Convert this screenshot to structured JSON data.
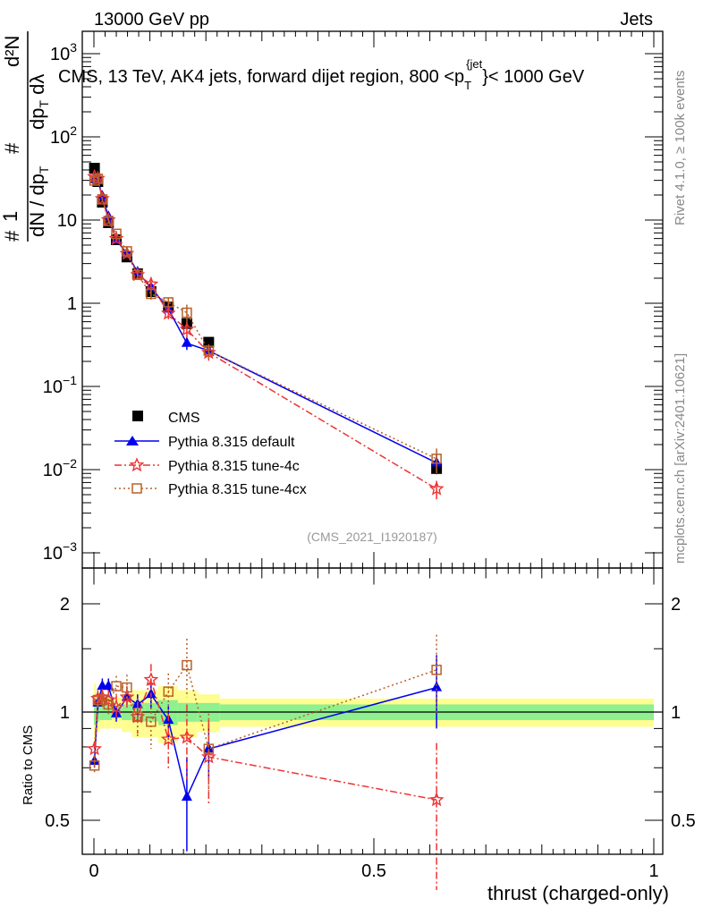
{
  "header": {
    "left": "13000 GeV pp",
    "right": "Jets"
  },
  "side": {
    "rivet": "Rivet 4.1.0, ≥ 100k events",
    "mcplots": "mcplots.cern.ch [arXiv:2401.10621]"
  },
  "analysis_tag": "(CMS_2021_I1920187)",
  "chart_data": [
    {
      "type": "scatter",
      "title_parts": {
        "pre": "CMS, 13 TeV, AK4 jets, forward dijet region, 800 <p",
        "sub": "T",
        "sup": "{jet",
        "post": "}< 1000 GeV"
      },
      "ylabel_parts": {
        "hash": "#",
        "one": "1",
        "den1": "dN / dp",
        "den1_sub": "T",
        "num2": "d²N",
        "den2": "dp",
        "den2_sub": "T",
        "den2_post": " dλ"
      },
      "yscale": "log",
      "ylim": [
        0.0007,
        2000
      ],
      "xlim": [
        -0.02,
        1.0
      ],
      "ytick_labels": [
        {
          "v": 1000,
          "base": "10",
          "exp": "3"
        },
        {
          "v": 100,
          "base": "10",
          "exp": "2"
        },
        {
          "v": 10,
          "base": "10",
          "exp": ""
        },
        {
          "v": 1,
          "base": "1",
          "exp": ""
        },
        {
          "v": 0.1,
          "base": "10",
          "exp": "−1"
        },
        {
          "v": 0.01,
          "base": "10",
          "exp": "−2"
        },
        {
          "v": 0.001,
          "base": "10",
          "exp": "−3"
        }
      ],
      "x": [
        0.001,
        0.007,
        0.015,
        0.026,
        0.04,
        0.059,
        0.078,
        0.102,
        0.133,
        0.166,
        0.205,
        0.612
      ],
      "cms": [
        42,
        29,
        16.4,
        9.3,
        5.8,
        3.6,
        2.26,
        1.38,
        0.9,
        0.57,
        0.34,
        0.0103
      ],
      "legend_position": "center-left",
      "series": [
        {
          "name": "CMS",
          "color": "#000000",
          "marker": "square"
        },
        {
          "name": "Pythia 8.315 default",
          "color": "#0000ee",
          "marker": "triangle",
          "line": "solid"
        },
        {
          "name": "Pythia 8.315 tune-4c",
          "color": "#ee3333",
          "marker": "star",
          "line": "dashdot"
        },
        {
          "name": "Pythia 8.315 tune-4cx",
          "color": "#b8602a",
          "marker": "open-square",
          "line": "dotted"
        }
      ]
    },
    {
      "type": "scatter",
      "ylabel": "Ratio to CMS",
      "xlabel": "thrust (charged-only)",
      "yscale": "log",
      "ylim": [
        0.42,
        2.4
      ],
      "xlim": [
        -0.02,
        1.0
      ],
      "ytick_labels": [
        "0.5",
        "1",
        "2"
      ],
      "ytick_values": [
        0.5,
        1,
        2
      ],
      "xtick_labels": [
        "0",
        "0.5",
        "1"
      ],
      "xtick_values": [
        0,
        0.5,
        1
      ],
      "band_edges": [
        0,
        0.004,
        0.01,
        0.02,
        0.032,
        0.05,
        0.068,
        0.09,
        0.115,
        0.15,
        0.185,
        0.225,
        1.0
      ],
      "band_inner": [
        0.08,
        0.06,
        0.05,
        0.05,
        0.04,
        0.05,
        0.06,
        0.06,
        0.08,
        0.06,
        0.06,
        0.05
      ],
      "band_outer": [
        0.2,
        0.12,
        0.1,
        0.1,
        0.1,
        0.12,
        0.15,
        0.15,
        0.18,
        0.15,
        0.12,
        0.09
      ],
      "band_colors": {
        "inner": "#8ef08e",
        "outer": "#fefe90"
      },
      "ratios": {
        "default": [
          0.73,
          1.06,
          1.18,
          1.18,
          0.99,
          1.1,
          1.05,
          1.12,
          0.95,
          0.58,
          0.79,
          1.17
        ],
        "tune4c": [
          0.79,
          1.09,
          1.1,
          1.08,
          1.03,
          1.1,
          0.97,
          1.23,
          0.84,
          0.85,
          0.75,
          0.57
        ],
        "tune4cx": [
          0.71,
          1.08,
          1.08,
          1.05,
          1.18,
          1.17,
          0.97,
          0.94,
          1.14,
          1.35,
          0.79,
          1.31
        ]
      },
      "ratio_errors": {
        "default": [
          0.03,
          0.05,
          0.06,
          0.06,
          0.05,
          0.05,
          0.07,
          0.1,
          0.1,
          0.17,
          0.14,
          0.27
        ],
        "tune4c": [
          0.04,
          0.06,
          0.06,
          0.07,
          0.08,
          0.08,
          0.1,
          0.13,
          0.15,
          0.2,
          0.2,
          0.25
        ],
        "tune4cx": [
          0.04,
          0.06,
          0.06,
          0.07,
          0.08,
          0.1,
          0.12,
          0.15,
          0.14,
          0.25,
          0.2,
          0.33
        ]
      }
    }
  ]
}
